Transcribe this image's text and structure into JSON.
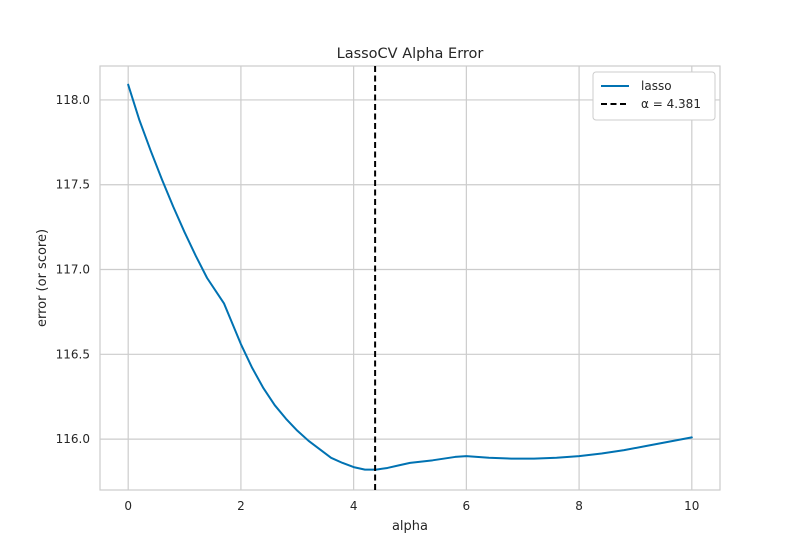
{
  "chart_data": {
    "type": "line",
    "title": "LassoCV Alpha Error",
    "xlabel": "alpha",
    "ylabel": "error (or score)",
    "xlim": [
      -0.5,
      10.5
    ],
    "ylim": [
      115.7,
      118.2
    ],
    "xticks": [
      0,
      2,
      4,
      6,
      8,
      10
    ],
    "xtick_labels": [
      "0",
      "2",
      "4",
      "6",
      "8",
      "10"
    ],
    "yticks": [
      116.0,
      116.5,
      117.0,
      117.5,
      118.0
    ],
    "ytick_labels": [
      "116.0",
      "116.5",
      "117.0",
      "117.5",
      "118.0"
    ],
    "grid": true,
    "legend_position": "top-right",
    "series": [
      {
        "name": "lasso",
        "color": "#0072B2",
        "x": [
          0.0,
          0.2,
          0.4,
          0.6,
          0.8,
          1.0,
          1.2,
          1.4,
          1.6,
          1.7,
          1.8,
          2.0,
          2.2,
          2.4,
          2.6,
          2.8,
          3.0,
          3.2,
          3.4,
          3.6,
          3.8,
          4.0,
          4.2,
          4.4,
          4.6,
          4.8,
          5.0,
          5.4,
          5.8,
          6.0,
          6.4,
          6.8,
          7.2,
          7.6,
          8.0,
          8.4,
          8.8,
          9.2,
          9.6,
          10.0
        ],
        "y": [
          118.09,
          117.88,
          117.7,
          117.53,
          117.37,
          117.22,
          117.08,
          116.95,
          116.85,
          116.8,
          116.72,
          116.56,
          116.42,
          116.3,
          116.2,
          116.12,
          116.05,
          115.99,
          115.94,
          115.89,
          115.86,
          115.835,
          115.82,
          115.82,
          115.83,
          115.845,
          115.86,
          115.875,
          115.895,
          115.9,
          115.89,
          115.885,
          115.885,
          115.89,
          115.9,
          115.915,
          115.935,
          115.96,
          115.985,
          116.01
        ]
      }
    ],
    "vline": {
      "x": 4.381,
      "label": "α = 4.381",
      "color": "#000000",
      "style": "dashed"
    }
  }
}
